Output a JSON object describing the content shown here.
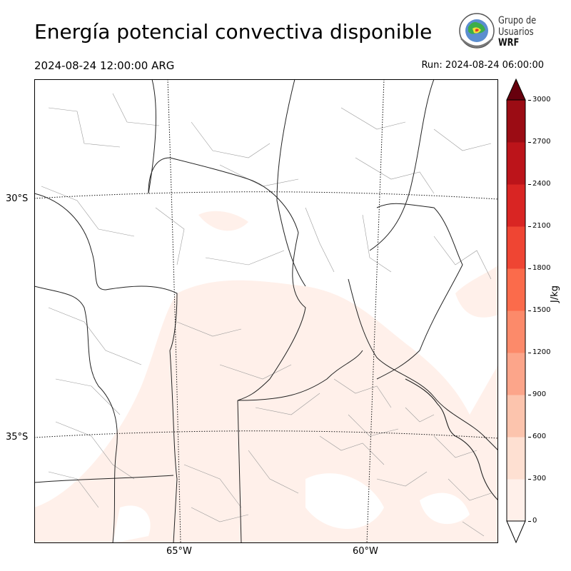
{
  "header": {
    "title": "Energía potencial convectiva disponible",
    "valid_time": "2024-08-24 12:00:00 ARG",
    "run_time": "Run: 2024-08-24 06:00:00"
  },
  "logo": {
    "line1": "Grupo de",
    "line2": "Usuarios",
    "line3": "WRF"
  },
  "map": {
    "lat_labels": [
      "30°S",
      "35°S"
    ],
    "lon_labels": [
      "65°W",
      "60°W"
    ],
    "graticule": "dotted",
    "field": "CAPE"
  },
  "colorbar": {
    "label": "J/kg",
    "ticks": [
      "0",
      "300",
      "600",
      "900",
      "1200",
      "1500",
      "1800",
      "2100",
      "2400",
      "2700",
      "3000"
    ],
    "colors": [
      "#fff0ea",
      "#fee0d2",
      "#fcc4ad",
      "#fca58a",
      "#fc8a6a",
      "#fb6b4b",
      "#ef4533",
      "#d92523",
      "#bc141a",
      "#9b0c14",
      "#7f0a10"
    ],
    "over_color": "#67000d",
    "extend": "both"
  }
}
